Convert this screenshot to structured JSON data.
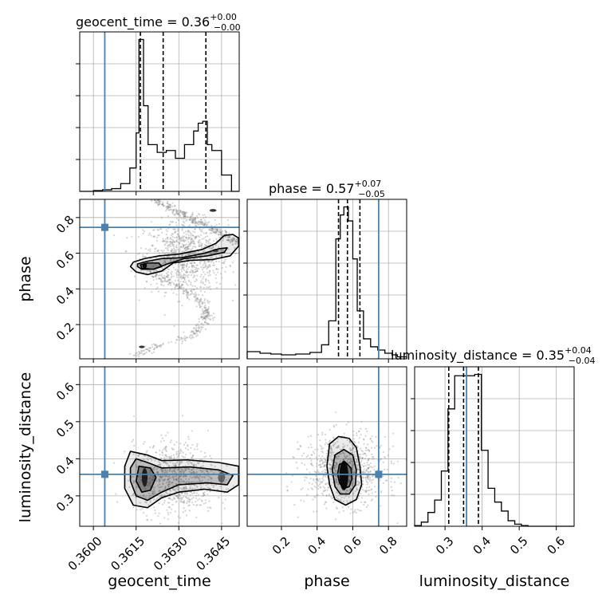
{
  "chart_data": {
    "type": "corner",
    "parameters": [
      "geocent_time",
      "phase",
      "luminosity_distance"
    ],
    "truths": {
      "geocent_time": 0.3604,
      "phase": 0.745,
      "luminosity_distance": 0.358
    },
    "colors": {
      "truth": "#4682b4",
      "histogram": "#000000",
      "samples": "#888888",
      "grid": "#b0b0b0"
    },
    "grid": true,
    "axes": {
      "geocent_time": {
        "label": "geocent_time",
        "range": [
          0.35952,
          0.36512
        ],
        "ticks": [
          0.36,
          0.3615,
          0.363,
          0.3645
        ],
        "tick_labels": [
          "0.3600",
          "0.3615",
          "0.3630",
          "0.3645"
        ]
      },
      "phase": {
        "label": "phase",
        "range": [
          0.008,
          0.902
        ],
        "ticks": [
          0.2,
          0.4,
          0.6,
          0.8
        ],
        "tick_labels": [
          "0.2",
          "0.4",
          "0.6",
          "0.8"
        ]
      },
      "luminosity_distance": {
        "label": "luminosity_distance",
        "range": [
          0.218,
          0.648
        ],
        "ticks": [
          0.3,
          0.4,
          0.5,
          0.6
        ],
        "tick_labels": [
          "0.3",
          "0.4",
          "0.5",
          "0.6"
        ]
      }
    },
    "marginals": [
      {
        "parameter": "geocent_time",
        "title_main": "geocent_time = 0.36",
        "title_sup": "+0.00",
        "title_sub": "−0.00",
        "quantiles": [
          0.36165,
          0.36245,
          0.36395
        ],
        "bin_edges": [
          0.35952,
          0.36,
          0.36032,
          0.36064,
          0.36096,
          0.36128,
          0.3615,
          0.3616,
          0.36176,
          0.36192,
          0.36224,
          0.36256,
          0.36288,
          0.3632,
          0.36352,
          0.36368,
          0.36384,
          0.364,
          0.36416,
          0.3645,
          0.36485,
          0.36512
        ],
        "counts": [
          0,
          2,
          4,
          7,
          20,
          60,
          150,
          390,
          220,
          120,
          100,
          105,
          85,
          120,
          155,
          175,
          180,
          120,
          105,
          42,
          0
        ]
      },
      {
        "parameter": "phase",
        "title_main": "phase = 0.57",
        "title_sup": "+0.07",
        "title_sub": "−0.05",
        "quantiles": [
          0.52,
          0.57,
          0.64
        ],
        "bin_edges": [
          0.008,
          0.08,
          0.14,
          0.2,
          0.28,
          0.36,
          0.425,
          0.465,
          0.505,
          0.53,
          0.55,
          0.575,
          0.6,
          0.625,
          0.66,
          0.7,
          0.74,
          0.78,
          0.82,
          0.85,
          0.902
        ],
        "counts": [
          18,
          14,
          12,
          10,
          12,
          16,
          35,
          95,
          300,
          360,
          380,
          345,
          250,
          120,
          50,
          30,
          22,
          14,
          10,
          5
        ]
      },
      {
        "parameter": "luminosity_distance",
        "title_main": "luminosity_distance = 0.35",
        "title_sup": "+0.04",
        "title_sub": "−0.04",
        "quantiles": [
          0.31,
          0.35,
          0.39
        ],
        "bin_edges": [
          0.218,
          0.236,
          0.254,
          0.272,
          0.29,
          0.308,
          0.326,
          0.344,
          0.362,
          0.38,
          0.398,
          0.416,
          0.434,
          0.452,
          0.47,
          0.488,
          0.506,
          0.524,
          0.648
        ],
        "counts": [
          1,
          6,
          20,
          38,
          80,
          170,
          218,
          218,
          218,
          220,
          110,
          55,
          35,
          22,
          8,
          3,
          1,
          0
        ]
      }
    ],
    "joint": [
      {
        "x": "geocent_time",
        "y": "phase",
        "contours": [
          [
            [
              0.3614,
              0.55
            ],
            [
              0.3618,
              0.57
            ],
            [
              0.3623,
              0.585
            ],
            [
              0.363,
              0.595
            ],
            [
              0.3638,
              0.62
            ],
            [
              0.3643,
              0.655
            ],
            [
              0.3646,
              0.7
            ],
            [
              0.3649,
              0.705
            ],
            [
              0.3651,
              0.685
            ],
            [
              0.3651,
              0.64
            ],
            [
              0.3648,
              0.585
            ],
            [
              0.3642,
              0.565
            ],
            [
              0.3634,
              0.56
            ],
            [
              0.3628,
              0.545
            ],
            [
              0.3624,
              0.5
            ],
            [
              0.3619,
              0.48
            ],
            [
              0.3615,
              0.495
            ],
            [
              0.3613,
              0.525
            ]
          ],
          [
            [
              0.36155,
              0.54
            ],
            [
              0.3619,
              0.555
            ],
            [
              0.3624,
              0.57
            ],
            [
              0.3631,
              0.575
            ],
            [
              0.3639,
              0.6
            ],
            [
              0.3644,
              0.625
            ],
            [
              0.3647,
              0.63
            ],
            [
              0.3646,
              0.605
            ],
            [
              0.364,
              0.585
            ],
            [
              0.3632,
              0.57
            ],
            [
              0.3626,
              0.54
            ],
            [
              0.3621,
              0.51
            ],
            [
              0.3617,
              0.51
            ],
            [
              0.36155,
              0.525
            ]
          ],
          [
            [
              0.36165,
              0.535
            ],
            [
              0.3619,
              0.545
            ],
            [
              0.3623,
              0.545
            ],
            [
              0.3624,
              0.525
            ],
            [
              0.3621,
              0.51
            ],
            [
              0.3617,
              0.515
            ]
          ]
        ],
        "blobs": [
          {
            "cx": 0.3618,
            "cy": 0.53,
            "rx": 8e-05,
            "ry": 0.015,
            "opacity": 0.9
          },
          {
            "cx": 0.3643,
            "cy": 0.615,
            "rx": 0.0001,
            "ry": 0.01,
            "opacity": 0.55
          },
          {
            "cx": 0.3642,
            "cy": 0.84,
            "rx": 0.00012,
            "ry": 0.008,
            "opacity": 0.8
          },
          {
            "cx": 0.3617,
            "cy": 0.075,
            "rx": 0.0001,
            "ry": 0.007,
            "opacity": 0.8
          }
        ]
      },
      {
        "x": "geocent_time",
        "y": "luminosity_distance",
        "contours": [
          [
            [
              0.3613,
              0.42
            ],
            [
              0.3619,
              0.41
            ],
            [
              0.3624,
              0.395
            ],
            [
              0.3633,
              0.397
            ],
            [
              0.3644,
              0.39
            ],
            [
              0.3651,
              0.38
            ],
            [
              0.3651,
              0.33
            ],
            [
              0.3647,
              0.31
            ],
            [
              0.3639,
              0.318
            ],
            [
              0.363,
              0.31
            ],
            [
              0.3624,
              0.295
            ],
            [
              0.3619,
              0.268
            ],
            [
              0.3614,
              0.275
            ],
            [
              0.3611,
              0.32
            ],
            [
              0.3611,
              0.38
            ]
          ],
          [
            [
              0.3615,
              0.4
            ],
            [
              0.3619,
              0.39
            ],
            [
              0.3624,
              0.375
            ],
            [
              0.3634,
              0.378
            ],
            [
              0.3644,
              0.37
            ],
            [
              0.3649,
              0.355
            ],
            [
              0.3647,
              0.33
            ],
            [
              0.364,
              0.335
            ],
            [
              0.363,
              0.33
            ],
            [
              0.3624,
              0.31
            ],
            [
              0.3619,
              0.288
            ],
            [
              0.3615,
              0.3
            ],
            [
              0.3613,
              0.34
            ],
            [
              0.3613,
              0.375
            ]
          ],
          [
            [
              0.3616,
              0.38
            ],
            [
              0.362,
              0.375
            ],
            [
              0.3622,
              0.35
            ],
            [
              0.362,
              0.315
            ],
            [
              0.3617,
              0.31
            ],
            [
              0.3615,
              0.34
            ]
          ]
        ],
        "blobs": [
          {
            "cx": 0.3618,
            "cy": 0.35,
            "rx": 0.0001,
            "ry": 0.025,
            "opacity": 0.75
          },
          {
            "cx": 0.3645,
            "cy": 0.35,
            "rx": 0.00012,
            "ry": 0.015,
            "opacity": 0.45
          }
        ]
      },
      {
        "x": "phase",
        "y": "luminosity_distance",
        "contours": [
          [
            [
              0.47,
              0.44
            ],
            [
              0.52,
              0.46
            ],
            [
              0.58,
              0.455
            ],
            [
              0.62,
              0.43
            ],
            [
              0.64,
              0.38
            ],
            [
              0.65,
              0.33
            ],
            [
              0.62,
              0.29
            ],
            [
              0.56,
              0.275
            ],
            [
              0.5,
              0.29
            ],
            [
              0.47,
              0.33
            ],
            [
              0.455,
              0.38
            ]
          ],
          [
            [
              0.5,
              0.41
            ],
            [
              0.55,
              0.425
            ],
            [
              0.6,
              0.41
            ],
            [
              0.62,
              0.37
            ],
            [
              0.615,
              0.33
            ],
            [
              0.58,
              0.305
            ],
            [
              0.53,
              0.305
            ],
            [
              0.5,
              0.325
            ],
            [
              0.485,
              0.37
            ]
          ],
          [
            [
              0.525,
              0.385
            ],
            [
              0.56,
              0.39
            ],
            [
              0.59,
              0.375
            ],
            [
              0.595,
              0.345
            ],
            [
              0.58,
              0.325
            ],
            [
              0.55,
              0.32
            ],
            [
              0.525,
              0.335
            ],
            [
              0.515,
              0.36
            ]
          ]
        ],
        "blobs": [
          {
            "cx": 0.55,
            "cy": 0.355,
            "rx": 0.025,
            "ry": 0.04,
            "opacity": 0.9
          }
        ]
      }
    ]
  }
}
